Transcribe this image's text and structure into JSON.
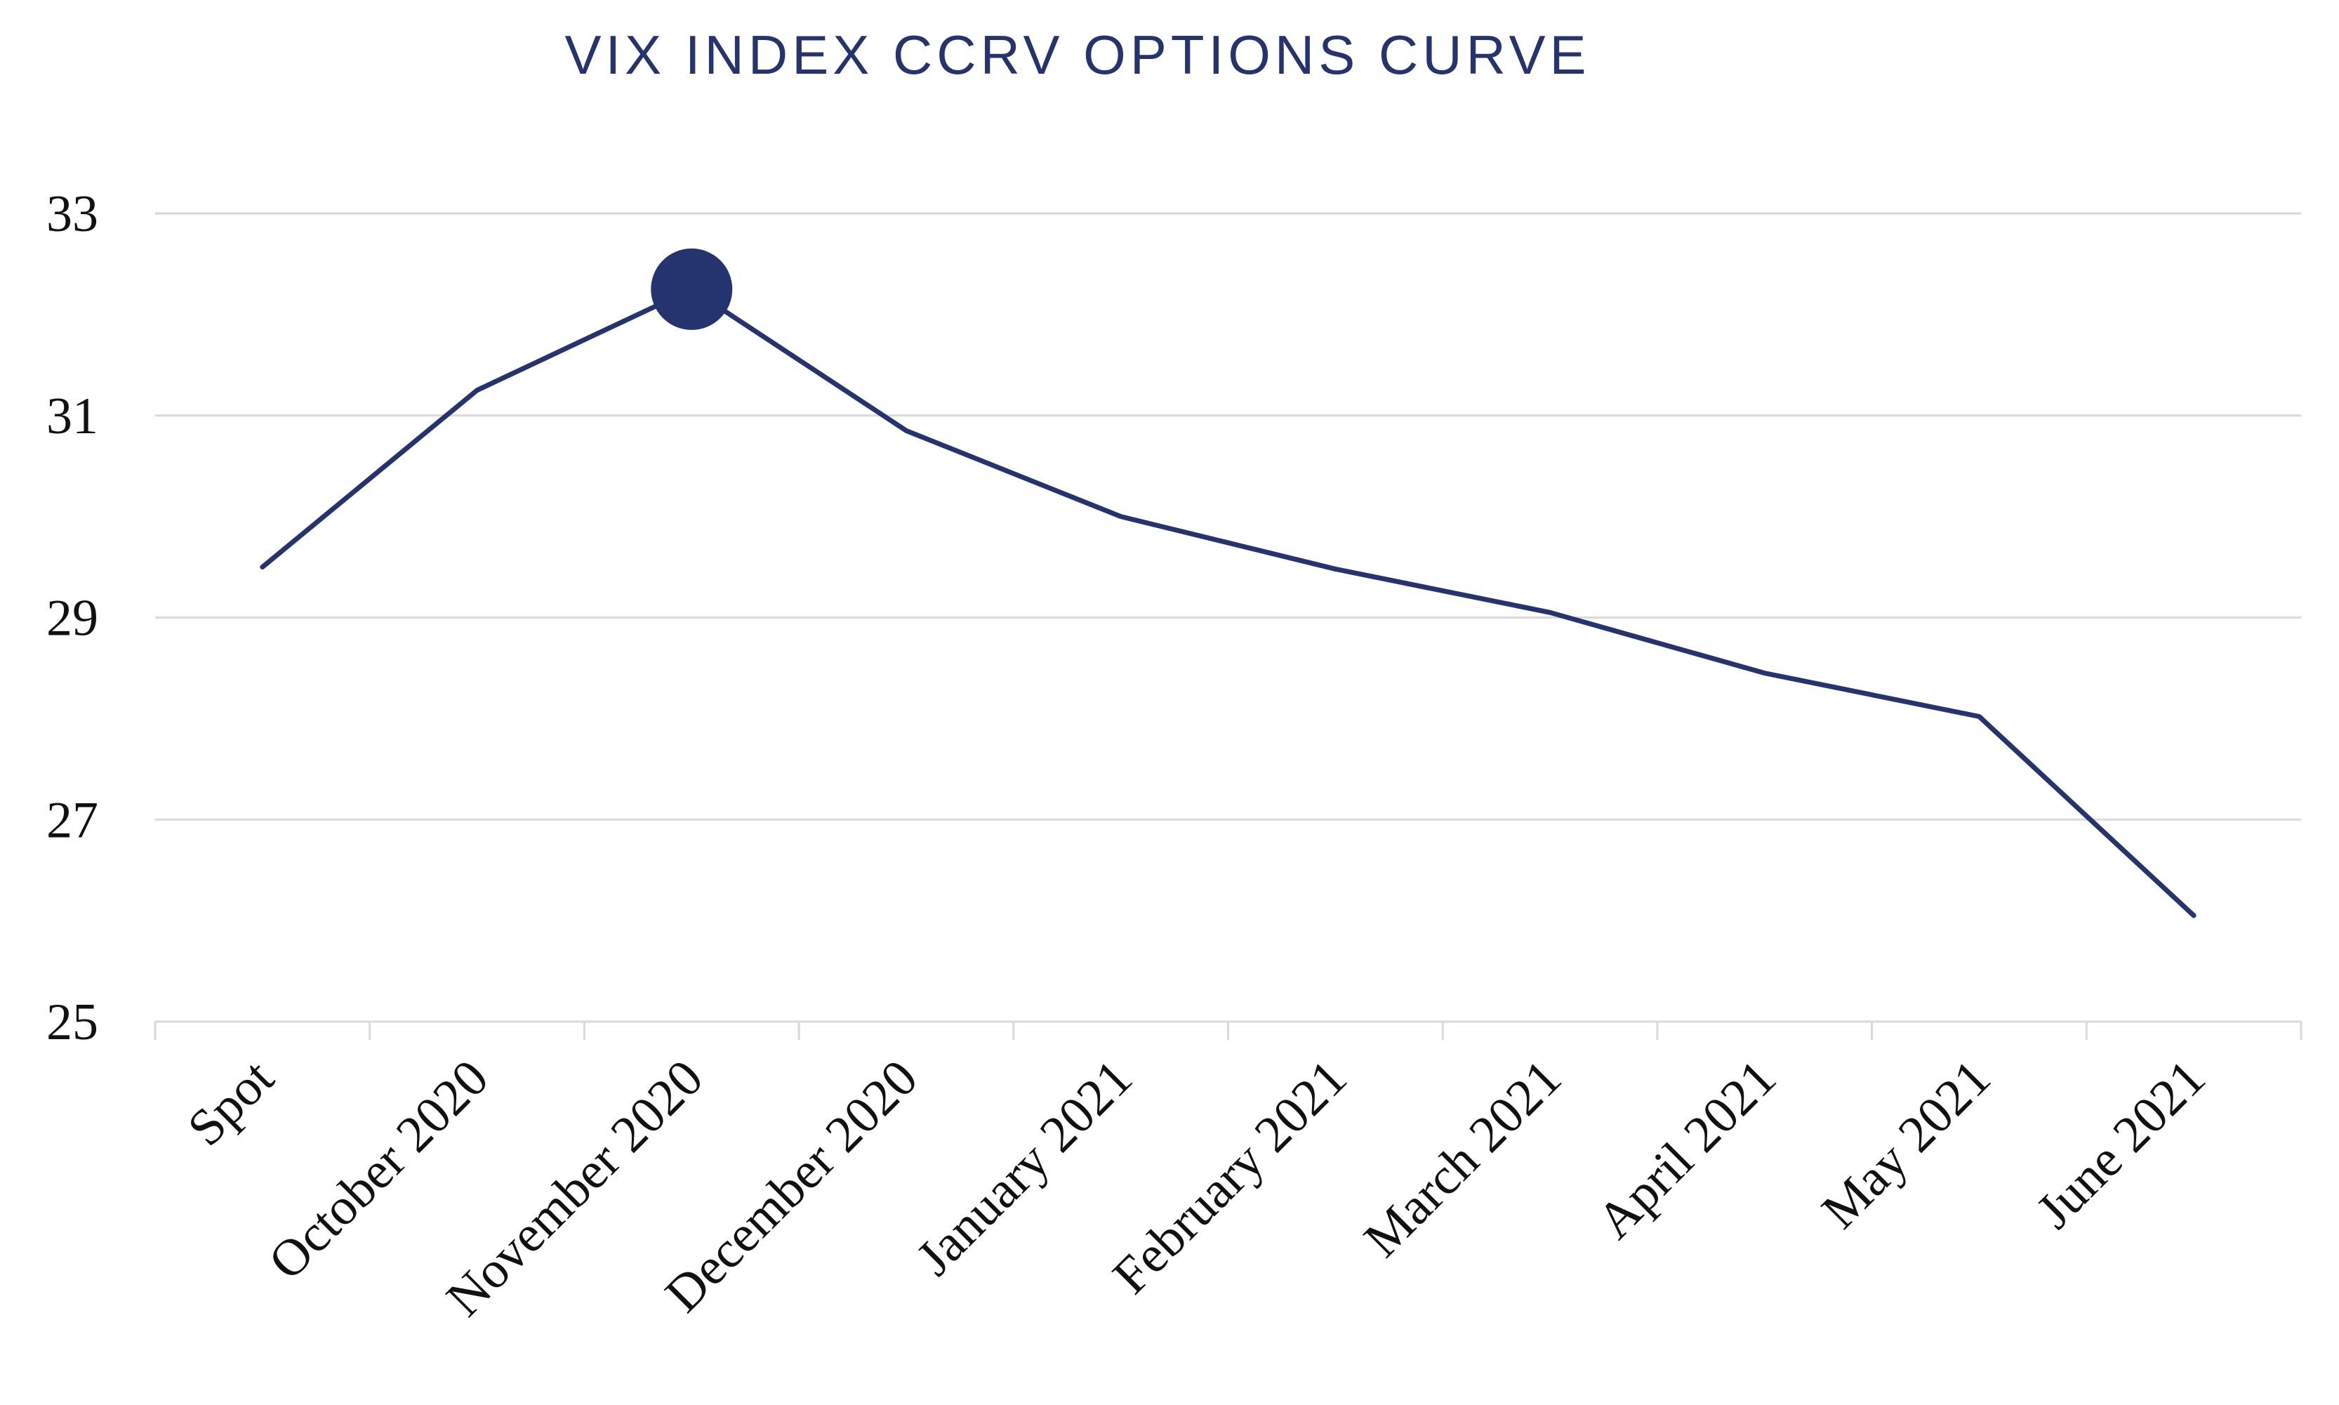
{
  "chart_data": {
    "type": "line",
    "title": "VIX INDEX CCRV OPTIONS CURVE",
    "xlabel": "",
    "ylabel": "",
    "categories": [
      "Spot",
      "October 2020",
      "November 2020",
      "December 2020",
      "January 2021",
      "February 2021",
      "March 2021",
      "April 2021",
      "May 2021",
      "June 2021"
    ],
    "series": [
      {
        "values": [
          29.5,
          31.25,
          32.25,
          30.85,
          30.0,
          29.48,
          29.05,
          28.45,
          28.02,
          26.05
        ],
        "color": "#25336e"
      }
    ],
    "highlight": {
      "category": "November 2020",
      "value": 32.25,
      "color": "#25336e"
    },
    "ylim": [
      25,
      33
    ],
    "yticks": [
      25,
      27,
      29,
      31,
      33
    ],
    "grid": true,
    "legend": "none",
    "colors": {
      "title": "#25336e",
      "grid": "#d9d9d9",
      "text": "#111111"
    }
  }
}
